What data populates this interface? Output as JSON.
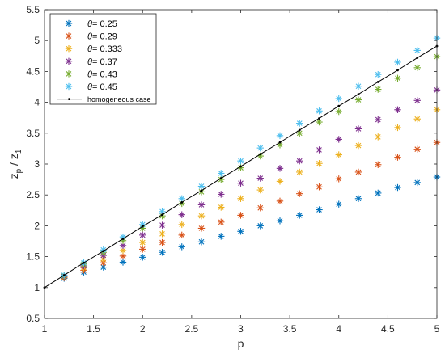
{
  "chart_data": {
    "type": "scatter",
    "xlabel": "p",
    "ylabel_main": "z",
    "ylabel_sub_p": "p",
    "ylabel_slash": " / ",
    "ylabel_sub_1": "1",
    "xlim": [
      1,
      5
    ],
    "ylim": [
      0.5,
      5.5
    ],
    "xticks": [
      "1",
      "1.5",
      "2",
      "2.5",
      "3",
      "3.5",
      "4",
      "4.5",
      "5"
    ],
    "yticks": [
      "0.5",
      "1",
      "1.5",
      "2",
      "2.5",
      "3",
      "3.5",
      "4",
      "4.5",
      "5",
      "5.5"
    ],
    "legend_position": "top-left",
    "x": [
      1.2,
      1.4,
      1.6,
      1.8,
      2.0,
      2.2,
      2.4,
      2.6,
      2.8,
      3.0,
      3.2,
      3.4,
      3.6,
      3.8,
      4.0,
      4.2,
      4.4,
      4.6,
      4.8,
      5.0
    ],
    "series": [
      {
        "name": "θ= 0.25",
        "theta": "θ",
        "label": "= 0.25",
        "color": "#0072BD",
        "values": [
          1.15,
          1.25,
          1.33,
          1.41,
          1.49,
          1.57,
          1.66,
          1.74,
          1.83,
          1.91,
          2.0,
          2.08,
          2.17,
          2.26,
          2.35,
          2.44,
          2.53,
          2.62,
          2.7,
          2.79
        ]
      },
      {
        "name": "θ= 0.29",
        "theta": "θ",
        "label": "= 0.29",
        "color": "#D95319",
        "values": [
          1.16,
          1.28,
          1.4,
          1.51,
          1.62,
          1.73,
          1.85,
          1.96,
          2.06,
          2.17,
          2.29,
          2.4,
          2.52,
          2.63,
          2.76,
          2.87,
          2.99,
          3.11,
          3.24,
          3.35
        ]
      },
      {
        "name": "θ= 0.333",
        "theta": "θ",
        "label": "= 0.333",
        "color": "#EDB120",
        "values": [
          1.17,
          1.32,
          1.46,
          1.6,
          1.73,
          1.87,
          2.02,
          2.16,
          2.3,
          2.44,
          2.58,
          2.72,
          2.87,
          3.01,
          3.15,
          3.3,
          3.44,
          3.59,
          3.73,
          3.88
        ]
      },
      {
        "name": "θ= 0.37",
        "theta": "θ",
        "label": "= 0.37",
        "color": "#7E2F8E",
        "values": [
          1.18,
          1.35,
          1.52,
          1.68,
          1.85,
          2.01,
          2.18,
          2.34,
          2.51,
          2.69,
          2.77,
          2.93,
          3.05,
          3.23,
          3.4,
          3.57,
          3.72,
          3.88,
          4.03,
          4.2
        ]
      },
      {
        "name": "θ= 0.43",
        "theta": "θ",
        "label": "= 0.43",
        "color": "#77AC30",
        "values": [
          1.19,
          1.38,
          1.57,
          1.76,
          1.96,
          2.16,
          2.36,
          2.55,
          2.75,
          2.94,
          3.13,
          3.31,
          3.5,
          3.68,
          3.85,
          4.04,
          4.21,
          4.39,
          4.56,
          4.74
        ]
      },
      {
        "name": "θ= 0.45",
        "theta": "θ",
        "label": "= 0.45",
        "color": "#4DBEEE",
        "values": [
          1.2,
          1.4,
          1.61,
          1.82,
          2.02,
          2.23,
          2.44,
          2.64,
          2.85,
          3.05,
          3.26,
          3.46,
          3.66,
          3.86,
          4.06,
          4.26,
          4.45,
          4.65,
          4.84,
          5.04
        ]
      }
    ],
    "line": {
      "name": "homogeneous case",
      "label": "homogeneous case",
      "color": "#000000",
      "x": [
        1.0,
        1.2,
        1.4,
        1.6,
        1.8,
        2.0,
        2.2,
        2.4,
        2.6,
        2.8,
        3.0,
        3.2,
        3.4,
        3.6,
        3.8,
        4.0,
        4.2,
        4.4,
        4.6,
        4.8,
        5.0
      ],
      "y": [
        1.0,
        1.2,
        1.4,
        1.59,
        1.79,
        1.99,
        2.18,
        2.38,
        2.57,
        2.77,
        2.96,
        3.16,
        3.35,
        3.55,
        3.74,
        3.94,
        4.13,
        4.33,
        4.52,
        4.72,
        4.91
      ]
    }
  }
}
